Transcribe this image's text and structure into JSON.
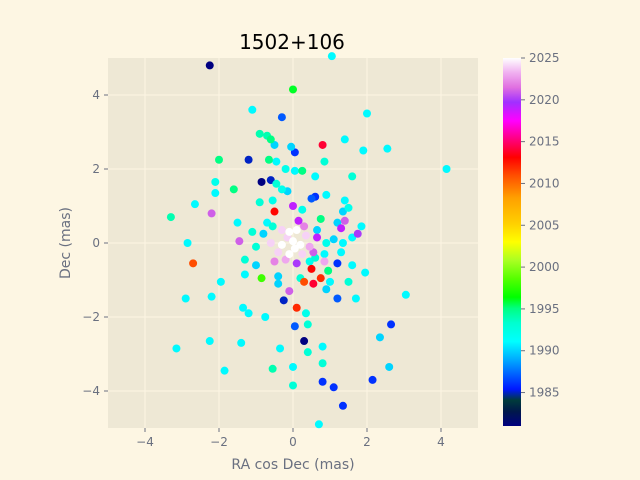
{
  "chart_data": {
    "type": "scatter",
    "title": "1502+106",
    "xlabel": "RA cos Dec (mas)",
    "ylabel": "Dec (mas)",
    "xlim": [
      -5,
      5
    ],
    "ylim": [
      -5,
      5
    ],
    "xticks": [
      -4,
      -2,
      0,
      2,
      4
    ],
    "yticks": [
      -4,
      -2,
      0,
      2,
      4
    ],
    "grid": true,
    "colorbar": {
      "label": "",
      "min": 1981,
      "max": 2025,
      "ticks": [
        1985,
        1990,
        1995,
        2000,
        2005,
        2010,
        2015,
        2020,
        2025
      ],
      "colormap": "gist_ncar"
    },
    "points": [
      {
        "x": -2.25,
        "y": 4.8,
        "c": 1981
      },
      {
        "x": 0.0,
        "y": 4.15,
        "c": 1996
      },
      {
        "x": 1.05,
        "y": 5.05,
        "c": 1991
      },
      {
        "x": -1.1,
        "y": 3.6,
        "c": 1991
      },
      {
        "x": -0.3,
        "y": 3.4,
        "c": 1987
      },
      {
        "x": 2.0,
        "y": 3.5,
        "c": 1991
      },
      {
        "x": -0.9,
        "y": 2.95,
        "c": 1994
      },
      {
        "x": -0.7,
        "y": 2.9,
        "c": 1994
      },
      {
        "x": -0.6,
        "y": 2.8,
        "c": 1995
      },
      {
        "x": -0.5,
        "y": 2.65,
        "c": 1990
      },
      {
        "x": -0.05,
        "y": 2.6,
        "c": 1990
      },
      {
        "x": 0.8,
        "y": 2.65,
        "c": 2014
      },
      {
        "x": 1.4,
        "y": 2.8,
        "c": 1991
      },
      {
        "x": 0.05,
        "y": 2.45,
        "c": 1986
      },
      {
        "x": 2.55,
        "y": 2.55,
        "c": 1991
      },
      {
        "x": 1.9,
        "y": 2.5,
        "c": 1991
      },
      {
        "x": -2.0,
        "y": 2.25,
        "c": 1995
      },
      {
        "x": -1.2,
        "y": 2.25,
        "c": 1985
      },
      {
        "x": -0.65,
        "y": 2.25,
        "c": 1995
      },
      {
        "x": -0.45,
        "y": 2.2,
        "c": 1991
      },
      {
        "x": 0.85,
        "y": 2.2,
        "c": 1993
      },
      {
        "x": -0.2,
        "y": 2.0,
        "c": 1992
      },
      {
        "x": 0.25,
        "y": 1.95,
        "c": 1995
      },
      {
        "x": 0.05,
        "y": 1.95,
        "c": 1991
      },
      {
        "x": 4.15,
        "y": 2.0,
        "c": 1991
      },
      {
        "x": -2.1,
        "y": 1.65,
        "c": 1992
      },
      {
        "x": -0.85,
        "y": 1.65,
        "c": 1981
      },
      {
        "x": -0.6,
        "y": 1.7,
        "c": 1985
      },
      {
        "x": -0.45,
        "y": 1.6,
        "c": 1993
      },
      {
        "x": 0.6,
        "y": 1.8,
        "c": 1991
      },
      {
        "x": 1.6,
        "y": 1.8,
        "c": 1993
      },
      {
        "x": -1.6,
        "y": 1.45,
        "c": 1995
      },
      {
        "x": -2.1,
        "y": 1.35,
        "c": 1991
      },
      {
        "x": -0.3,
        "y": 1.45,
        "c": 1992
      },
      {
        "x": -0.15,
        "y": 1.4,
        "c": 1990
      },
      {
        "x": -2.65,
        "y": 1.05,
        "c": 1991
      },
      {
        "x": 0.6,
        "y": 1.25,
        "c": 1986
      },
      {
        "x": 0.5,
        "y": 1.2,
        "c": 1987
      },
      {
        "x": 0.9,
        "y": 1.3,
        "c": 1991
      },
      {
        "x": 1.4,
        "y": 1.15,
        "c": 1991
      },
      {
        "x": 1.5,
        "y": 0.95,
        "c": 1992
      },
      {
        "x": 1.35,
        "y": 0.85,
        "c": 1990
      },
      {
        "x": -0.9,
        "y": 1.1,
        "c": 1993
      },
      {
        "x": -0.55,
        "y": 1.15,
        "c": 1992
      },
      {
        "x": 0.0,
        "y": 1.0,
        "c": 2019
      },
      {
        "x": 0.25,
        "y": 0.9,
        "c": 1992
      },
      {
        "x": -3.3,
        "y": 0.7,
        "c": 1994
      },
      {
        "x": -2.2,
        "y": 0.8,
        "c": 2021
      },
      {
        "x": -1.5,
        "y": 0.55,
        "c": 1991
      },
      {
        "x": -0.5,
        "y": 0.85,
        "c": 2013
      },
      {
        "x": 0.15,
        "y": 0.6,
        "c": 2019
      },
      {
        "x": 0.75,
        "y": 0.65,
        "c": 1995
      },
      {
        "x": 1.2,
        "y": 0.55,
        "c": 1990
      },
      {
        "x": 1.4,
        "y": 0.6,
        "c": 2021
      },
      {
        "x": 1.85,
        "y": 0.45,
        "c": 1991
      },
      {
        "x": 1.3,
        "y": 0.4,
        "c": 2019
      },
      {
        "x": -1.1,
        "y": 0.3,
        "c": 1993
      },
      {
        "x": -0.8,
        "y": 0.25,
        "c": 1990
      },
      {
        "x": -0.3,
        "y": 0.35,
        "c": 2024
      },
      {
        "x": -0.1,
        "y": 0.3,
        "c": 2025
      },
      {
        "x": 0.1,
        "y": 0.35,
        "c": 2025
      },
      {
        "x": 0.35,
        "y": 0.2,
        "c": 2024
      },
      {
        "x": 0.65,
        "y": 0.15,
        "c": 2019
      },
      {
        "x": 1.75,
        "y": 0.25,
        "c": 2020
      },
      {
        "x": 1.6,
        "y": 0.15,
        "c": 1991
      },
      {
        "x": -1.45,
        "y": 0.05,
        "c": 2021
      },
      {
        "x": -2.85,
        "y": 0.0,
        "c": 1991
      },
      {
        "x": -0.6,
        "y": 0.0,
        "c": 2024
      },
      {
        "x": -0.3,
        "y": -0.05,
        "c": 2025
      },
      {
        "x": 0.0,
        "y": 0.05,
        "c": 2025
      },
      {
        "x": 0.2,
        "y": -0.05,
        "c": 2025
      },
      {
        "x": 0.45,
        "y": -0.1,
        "c": 2023
      },
      {
        "x": 0.9,
        "y": 0.0,
        "c": 1992
      },
      {
        "x": 1.1,
        "y": 0.1,
        "c": 1990
      },
      {
        "x": 1.35,
        "y": 0.0,
        "c": 1991
      },
      {
        "x": -1.0,
        "y": -0.1,
        "c": 1993
      },
      {
        "x": -0.4,
        "y": -0.25,
        "c": 2024
      },
      {
        "x": -0.1,
        "y": -0.3,
        "c": 2025
      },
      {
        "x": 0.25,
        "y": -0.3,
        "c": 2024
      },
      {
        "x": 0.55,
        "y": -0.25,
        "c": 2021
      },
      {
        "x": 1.3,
        "y": -0.25,
        "c": 1991
      },
      {
        "x": -1.3,
        "y": -0.45,
        "c": 1993
      },
      {
        "x": -0.5,
        "y": -0.5,
        "c": 2022
      },
      {
        "x": 0.1,
        "y": -0.55,
        "c": 2020
      },
      {
        "x": 0.6,
        "y": -0.4,
        "c": 1993
      },
      {
        "x": 0.85,
        "y": -0.5,
        "c": 2023
      },
      {
        "x": 1.2,
        "y": -0.55,
        "c": 1986
      },
      {
        "x": -2.7,
        "y": -0.55,
        "c": 2011
      },
      {
        "x": -1.0,
        "y": -0.6,
        "c": 1990
      },
      {
        "x": 0.5,
        "y": -0.7,
        "c": 2013
      },
      {
        "x": 0.95,
        "y": -0.75,
        "c": 1995
      },
      {
        "x": 1.6,
        "y": -0.6,
        "c": 1991
      },
      {
        "x": 1.95,
        "y": -0.8,
        "c": 1991
      },
      {
        "x": -1.3,
        "y": -0.85,
        "c": 1991
      },
      {
        "x": -0.85,
        "y": -0.95,
        "c": 1998
      },
      {
        "x": -0.4,
        "y": -0.9,
        "c": 1990
      },
      {
        "x": 0.2,
        "y": -0.95,
        "c": 1993
      },
      {
        "x": 0.75,
        "y": -0.95,
        "c": 2012
      },
      {
        "x": -1.95,
        "y": -1.05,
        "c": 1991
      },
      {
        "x": -0.4,
        "y": -1.1,
        "c": 1990
      },
      {
        "x": 0.3,
        "y": -1.05,
        "c": 2011
      },
      {
        "x": 0.55,
        "y": -1.1,
        "c": 2014
      },
      {
        "x": 1.0,
        "y": -1.05,
        "c": 1991
      },
      {
        "x": 1.5,
        "y": -1.05,
        "c": 1993
      },
      {
        "x": -0.1,
        "y": -1.3,
        "c": 2021
      },
      {
        "x": 0.9,
        "y": -1.25,
        "c": 1990
      },
      {
        "x": -2.2,
        "y": -1.45,
        "c": 1991
      },
      {
        "x": -2.9,
        "y": -1.5,
        "c": 1991
      },
      {
        "x": -0.25,
        "y": -1.55,
        "c": 1985
      },
      {
        "x": 1.2,
        "y": -1.5,
        "c": 1987
      },
      {
        "x": 1.7,
        "y": -1.5,
        "c": 1991
      },
      {
        "x": 3.05,
        "y": -1.4,
        "c": 1991
      },
      {
        "x": -1.35,
        "y": -1.75,
        "c": 1991
      },
      {
        "x": 0.1,
        "y": -1.75,
        "c": 2012
      },
      {
        "x": -1.2,
        "y": -1.9,
        "c": 1991
      },
      {
        "x": -0.75,
        "y": -2.0,
        "c": 1991
      },
      {
        "x": 0.35,
        "y": -1.9,
        "c": 1992
      },
      {
        "x": 2.65,
        "y": -2.2,
        "c": 1986
      },
      {
        "x": 0.05,
        "y": -2.25,
        "c": 1987
      },
      {
        "x": 0.4,
        "y": -2.2,
        "c": 1993
      },
      {
        "x": -2.25,
        "y": -2.65,
        "c": 1991
      },
      {
        "x": -1.4,
        "y": -2.7,
        "c": 1991
      },
      {
        "x": 2.35,
        "y": -2.55,
        "c": 1990
      },
      {
        "x": 0.3,
        "y": -2.65,
        "c": 1981
      },
      {
        "x": 0.8,
        "y": -2.8,
        "c": 1991
      },
      {
        "x": -3.15,
        "y": -2.85,
        "c": 1991
      },
      {
        "x": -0.35,
        "y": -2.85,
        "c": 1991
      },
      {
        "x": 0.4,
        "y": -2.95,
        "c": 1993
      },
      {
        "x": 0.8,
        "y": -3.25,
        "c": 1993
      },
      {
        "x": -1.85,
        "y": -3.45,
        "c": 1991
      },
      {
        "x": -0.55,
        "y": -3.4,
        "c": 1994
      },
      {
        "x": 0.0,
        "y": -3.35,
        "c": 1991
      },
      {
        "x": 2.6,
        "y": -3.35,
        "c": 1990
      },
      {
        "x": 0.8,
        "y": -3.75,
        "c": 1986
      },
      {
        "x": 1.1,
        "y": -3.9,
        "c": 1986
      },
      {
        "x": 2.15,
        "y": -3.7,
        "c": 1986
      },
      {
        "x": 0.0,
        "y": -3.85,
        "c": 1993
      },
      {
        "x": 1.35,
        "y": -4.4,
        "c": 1986
      },
      {
        "x": 0.7,
        "y": -4.9,
        "c": 1991
      },
      {
        "x": -0.15,
        "y": 0.15,
        "c": 2024
      },
      {
        "x": 0.05,
        "y": -0.15,
        "c": 2025
      },
      {
        "x": -0.2,
        "y": -0.45,
        "c": 2023
      },
      {
        "x": 0.3,
        "y": 0.45,
        "c": 2022
      },
      {
        "x": -0.55,
        "y": 0.45,
        "c": 1993
      },
      {
        "x": 0.45,
        "y": -0.5,
        "c": 1992
      },
      {
        "x": 0.65,
        "y": 0.35,
        "c": 1990
      },
      {
        "x": -0.7,
        "y": 0.55,
        "c": 1991
      },
      {
        "x": 0.85,
        "y": -0.3,
        "c": 1991
      }
    ]
  }
}
